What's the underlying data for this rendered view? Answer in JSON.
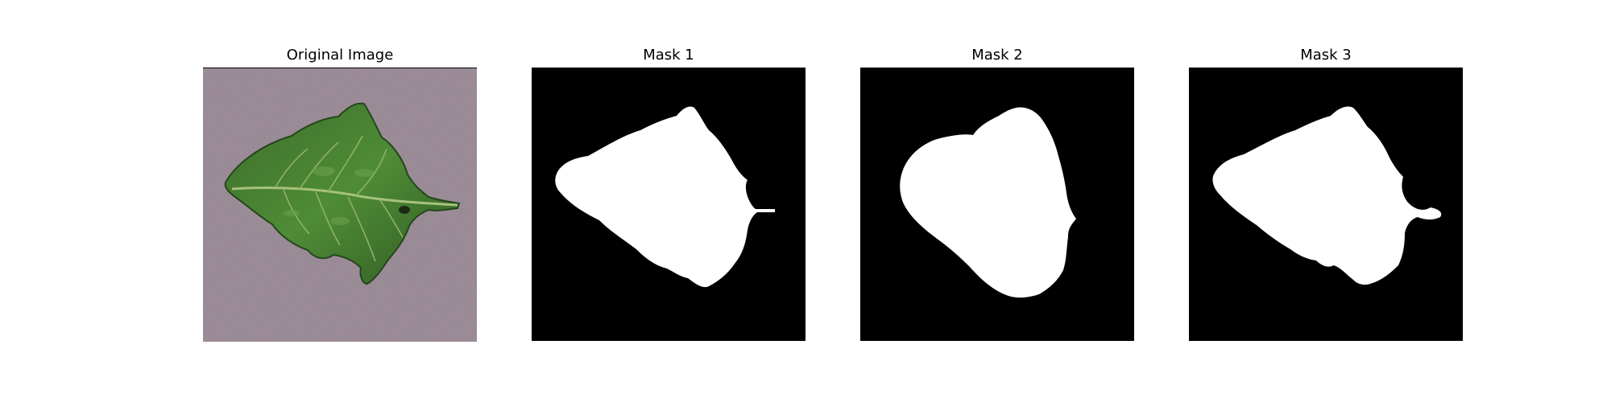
{
  "figure": {
    "panels": [
      {
        "title": "Original Image"
      },
      {
        "title": "Mask 1"
      },
      {
        "title": "Mask 2"
      },
      {
        "title": "Mask 3"
      }
    ]
  },
  "colors": {
    "background_surface": "#8c7c88",
    "leaf_dark": "#2f5a24",
    "leaf_mid": "#4d8a33",
    "leaf_vein": "#a6c27a",
    "mask_fg": "#ffffff",
    "mask_bg": "#000000"
  }
}
